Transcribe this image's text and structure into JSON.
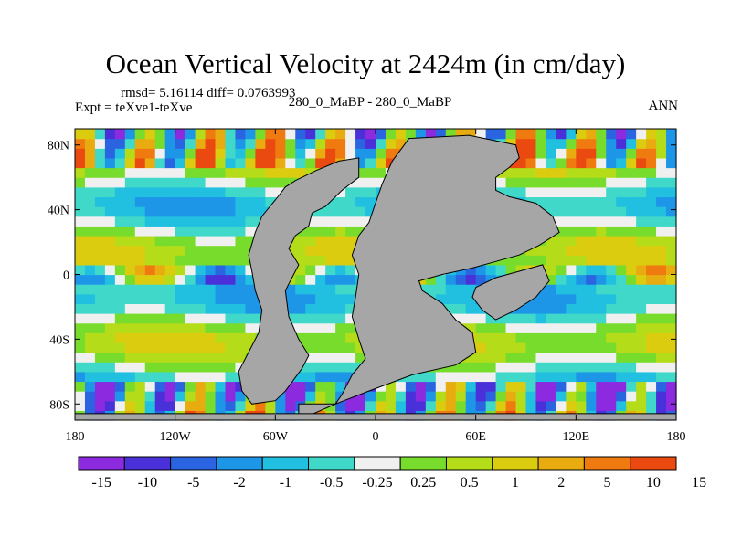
{
  "chart_data": {
    "type": "heatmap",
    "title": "Ocean Vertical Velocity at 2424m (in cm/day)",
    "stats_text": "rmsd= 5.16114 diff= 0.0763993",
    "expt_text": "Expt = teXve1-teXve",
    "subtitle": "280_0_MaBP - 280_0_MaBP",
    "season": "ANN",
    "xlim": [
      -180,
      180
    ],
    "ylim": [
      -90,
      90
    ],
    "x_ticks": [
      {
        "value": -180,
        "label": "180"
      },
      {
        "value": -120,
        "label": "120W"
      },
      {
        "value": -60,
        "label": "60W"
      },
      {
        "value": 0,
        "label": "0"
      },
      {
        "value": 60,
        "label": "60E"
      },
      {
        "value": 120,
        "label": "120E"
      },
      {
        "value": 180,
        "label": "180"
      }
    ],
    "y_ticks": [
      {
        "value": 80,
        "label": "80N"
      },
      {
        "value": 40,
        "label": "40N"
      },
      {
        "value": 0,
        "label": "0"
      },
      {
        "value": -40,
        "label": "40S"
      },
      {
        "value": -80,
        "label": "80S"
      }
    ],
    "colorbar": {
      "colors": [
        "#8c2ae0",
        "#4a30d8",
        "#2a64e0",
        "#1e96e8",
        "#22c0e0",
        "#40d8c8",
        "#f0f0f0",
        "#78dc2c",
        "#b4dc18",
        "#dccc10",
        "#e8ac10",
        "#ee7a10",
        "#ea4a10"
      ],
      "labels": [
        "-15",
        "-10",
        "-5",
        "-2",
        "-1",
        "-0.5",
        "-0.25",
        "0.25",
        "0.5",
        "1",
        "2",
        "5",
        "10",
        "15"
      ]
    },
    "land_color": "#a6a6a6",
    "land_masses": [
      {
        "name": "western-continent",
        "outline": [
          [
            -48,
            58
          ],
          [
            -36,
            64
          ],
          [
            -22,
            70
          ],
          [
            -10,
            72
          ],
          [
            -10,
            60
          ],
          [
            -20,
            52
          ],
          [
            -30,
            42
          ],
          [
            -38,
            38
          ],
          [
            -40,
            30
          ],
          [
            -48,
            24
          ],
          [
            -52,
            16
          ],
          [
            -46,
            6
          ],
          [
            -50,
            -2
          ],
          [
            -54,
            -10
          ],
          [
            -52,
            -26
          ],
          [
            -46,
            -40
          ],
          [
            -40,
            -50
          ],
          [
            -44,
            -58
          ],
          [
            -54,
            -72
          ],
          [
            -60,
            -78
          ],
          [
            -74,
            -80
          ],
          [
            -80,
            -72
          ],
          [
            -82,
            -60
          ],
          [
            -76,
            -48
          ],
          [
            -70,
            -36
          ],
          [
            -68,
            -22
          ],
          [
            -72,
            -10
          ],
          [
            -74,
            2
          ],
          [
            -76,
            12
          ],
          [
            -72,
            26
          ],
          [
            -68,
            36
          ],
          [
            -60,
            46
          ],
          [
            -54,
            54
          ]
        ]
      },
      {
        "name": "eastern-continent",
        "outline": [
          [
            -46,
            -90
          ],
          [
            -46,
            -80
          ],
          [
            -24,
            -80
          ],
          [
            -4,
            -72
          ],
          [
            22,
            -62
          ],
          [
            48,
            -56
          ],
          [
            60,
            -48
          ],
          [
            58,
            -36
          ],
          [
            48,
            -28
          ],
          [
            40,
            -18
          ],
          [
            28,
            -10
          ],
          [
            26,
            -4
          ],
          [
            40,
            0
          ],
          [
            58,
            4
          ],
          [
            72,
            8
          ],
          [
            86,
            12
          ],
          [
            98,
            18
          ],
          [
            110,
            26
          ],
          [
            106,
            36
          ],
          [
            96,
            44
          ],
          [
            80,
            48
          ],
          [
            72,
            52
          ],
          [
            72,
            60
          ],
          [
            80,
            66
          ],
          [
            86,
            72
          ],
          [
            84,
            80
          ],
          [
            56,
            86
          ],
          [
            20,
            84
          ],
          [
            10,
            70
          ],
          [
            4,
            56
          ],
          [
            0,
            44
          ],
          [
            -4,
            32
          ],
          [
            -10,
            24
          ],
          [
            -14,
            12
          ],
          [
            -10,
            0
          ],
          [
            -12,
            -14
          ],
          [
            -14,
            -26
          ],
          [
            -10,
            -40
          ],
          [
            -6,
            -52
          ],
          [
            -14,
            -62
          ],
          [
            -20,
            -74
          ],
          [
            -24,
            -80
          ],
          [
            -46,
            -90
          ]
        ]
      },
      {
        "name": "inner-island",
        "outline": [
          [
            60,
            -8
          ],
          [
            72,
            -2
          ],
          [
            86,
            2
          ],
          [
            100,
            6
          ],
          [
            104,
            -4
          ],
          [
            96,
            -14
          ],
          [
            84,
            -22
          ],
          [
            72,
            -28
          ],
          [
            64,
            -22
          ],
          [
            58,
            -14
          ]
        ]
      },
      {
        "name": "southern-strip",
        "outline": [
          [
            -180,
            -90
          ],
          [
            180,
            -90
          ],
          [
            180,
            -86
          ],
          [
            -180,
            -86
          ]
        ]
      }
    ]
  }
}
